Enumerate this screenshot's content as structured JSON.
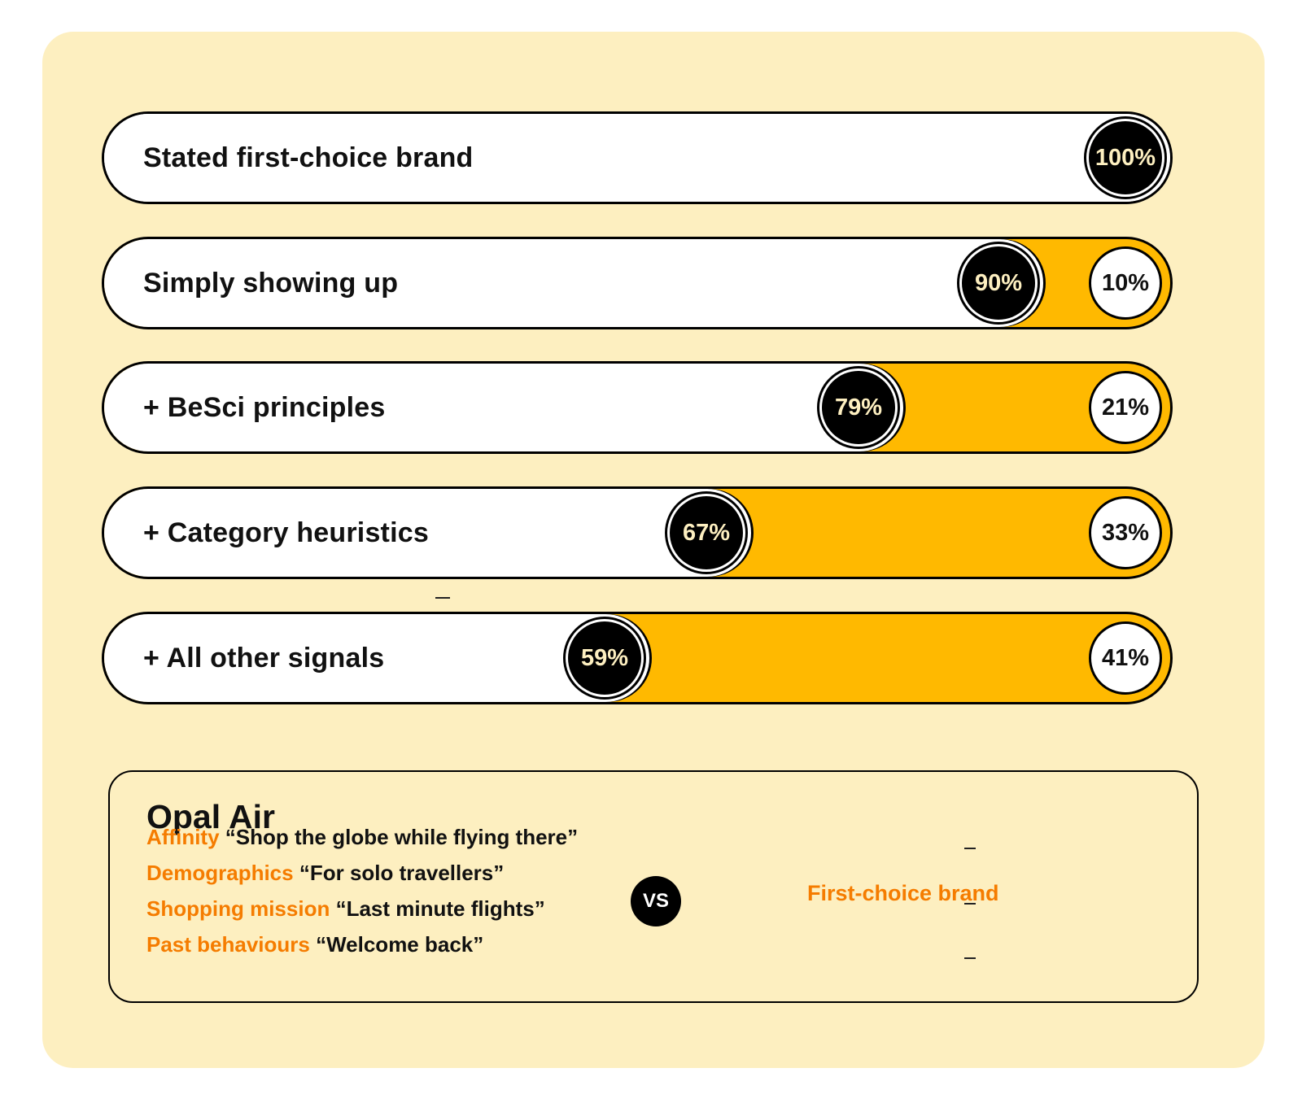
{
  "colors": {
    "panel": "#fdefc0",
    "remainder": "#ffb900",
    "highlight": "#f57c00",
    "ink": "#000000"
  },
  "chart_data": {
    "type": "bar",
    "stacked": true,
    "orientation": "horizontal",
    "categories": [
      "Stated first-choice brand",
      "Simply showing up",
      "+ BeSci principles",
      "+ Category heuristics",
      "+ All other signals"
    ],
    "series": [
      {
        "values": [
          100,
          90,
          79,
          67,
          59
        ]
      },
      {
        "values": [
          0,
          10,
          21,
          33,
          41
        ]
      }
    ],
    "labels": [
      [
        "100%",
        ""
      ],
      [
        "90%",
        "10%"
      ],
      [
        "79%",
        "21%"
      ],
      [
        "67%",
        "33%"
      ],
      [
        "59%",
        "41%"
      ]
    ],
    "xlim": [
      0,
      100
    ]
  },
  "comparison": {
    "brand": "Opal Air",
    "signals": [
      {
        "key": "Affinity",
        "quote": "“Shop the globe while flying there”"
      },
      {
        "key": "Demographics",
        "quote": "“For solo travellers”"
      },
      {
        "key": "Shopping mission",
        "quote": "“Last minute flights”"
      },
      {
        "key": "Past behaviours",
        "quote": "“Welcome back”"
      }
    ],
    "vs_label": "VS",
    "other": "First-choice brand"
  }
}
